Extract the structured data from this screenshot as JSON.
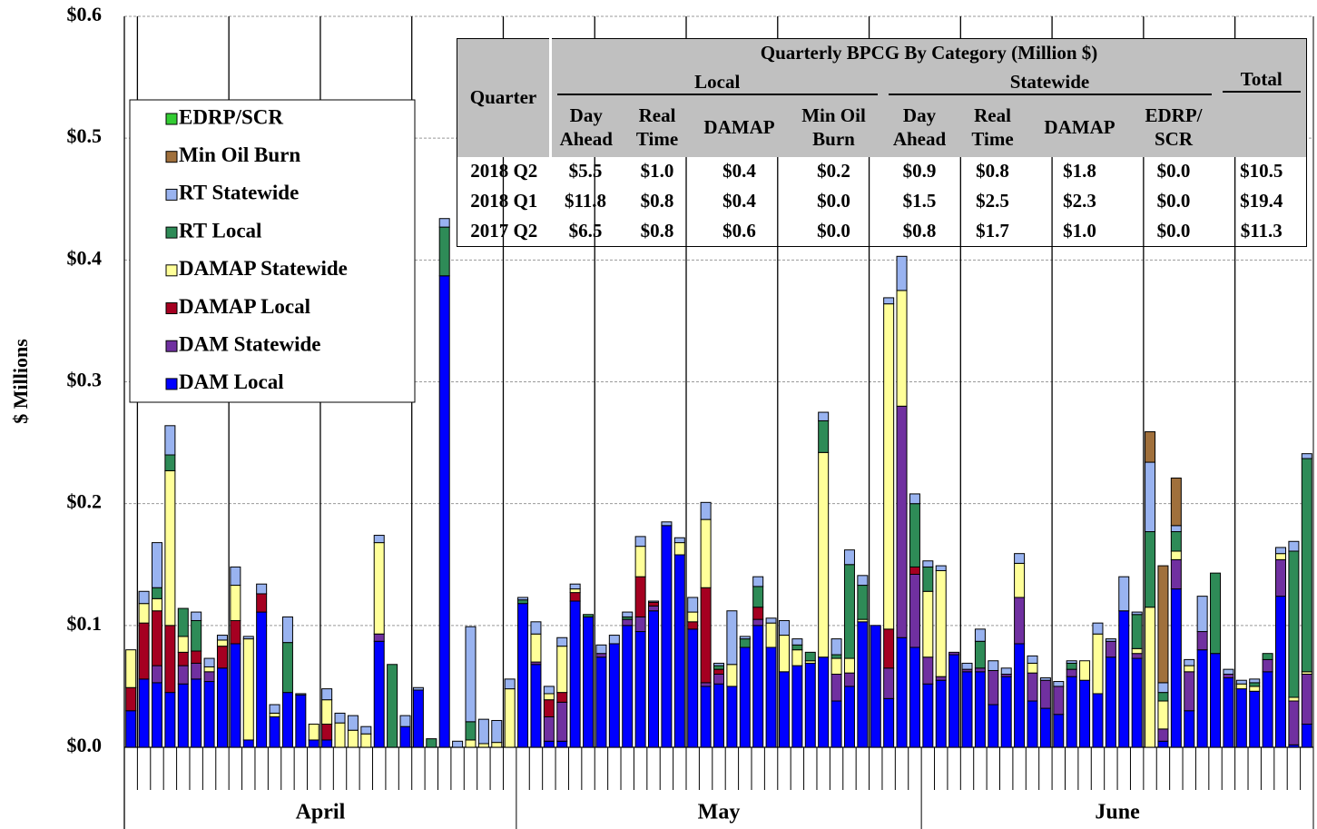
{
  "chart_data": {
    "type": "stacked_bar",
    "y_label": "$ Millions",
    "ylim": [
      0,
      0.6
    ],
    "yticks": [
      {
        "value": 0,
        "label": "$0.0"
      },
      {
        "value": 0.1,
        "label": "$0.1"
      },
      {
        "value": 0.2,
        "label": "$0.2"
      },
      {
        "value": 0.3,
        "label": "$0.3"
      },
      {
        "value": 0.4,
        "label": "$0.4"
      },
      {
        "value": 0.5,
        "label": "$0.5"
      },
      {
        "value": 0.6,
        "label": "$0.6"
      }
    ],
    "grid": true,
    "categories": [
      "April",
      "April",
      "April",
      "April",
      "April",
      "April",
      "April",
      "April",
      "April",
      "April",
      "April",
      "April",
      "April",
      "April",
      "April",
      "April",
      "April",
      "April",
      "April",
      "April",
      "April",
      "April",
      "April",
      "April",
      "April",
      "April",
      "April",
      "April",
      "April",
      "April",
      "May",
      "May",
      "May",
      "May",
      "May",
      "May",
      "May",
      "May",
      "May",
      "May",
      "May",
      "May",
      "May",
      "May",
      "May",
      "May",
      "May",
      "May",
      "May",
      "May",
      "May",
      "May",
      "May",
      "May",
      "May",
      "May",
      "May",
      "May",
      "May",
      "May",
      "May",
      "June",
      "June",
      "June",
      "June",
      "June",
      "June",
      "June",
      "June",
      "June",
      "June",
      "June",
      "June",
      "June",
      "June",
      "June",
      "June",
      "June",
      "June",
      "June",
      "June",
      "June",
      "June",
      "June",
      "June",
      "June",
      "June",
      "June",
      "June",
      "June",
      "June"
    ],
    "series": [
      {
        "name": "EDRP/SCR",
        "color": "#33cc33",
        "values": [
          0,
          0,
          0,
          0,
          0,
          0,
          0,
          0,
          0,
          0,
          0,
          0,
          0,
          0,
          0,
          0,
          0,
          0,
          0,
          0,
          0,
          0,
          0,
          0,
          0,
          0,
          0,
          0,
          0,
          0,
          0,
          0,
          0,
          0,
          0,
          0,
          0,
          0,
          0,
          0,
          0,
          0,
          0,
          0,
          0,
          0,
          0,
          0,
          0,
          0,
          0,
          0,
          0,
          0,
          0,
          0,
          0,
          0,
          0,
          0,
          0,
          0,
          0,
          0,
          0,
          0,
          0,
          0,
          0,
          0,
          0,
          0,
          0,
          0,
          0,
          0,
          0,
          0,
          0,
          0,
          0,
          0,
          0,
          0,
          0,
          0,
          0,
          0,
          0,
          0,
          0
        ]
      },
      {
        "name": "Min Oil Burn",
        "color": "#a0703c",
        "values": [
          0,
          0,
          0,
          0,
          0,
          0,
          0,
          0,
          0,
          0,
          0,
          0,
          0,
          0,
          0,
          0,
          0,
          0,
          0,
          0,
          0,
          0,
          0,
          0,
          0,
          0,
          0,
          0,
          0,
          0,
          0,
          0,
          0,
          0,
          0,
          0,
          0,
          0,
          0,
          0,
          0,
          0,
          0,
          0,
          0,
          0,
          0,
          0,
          0,
          0,
          0,
          0,
          0,
          0,
          0,
          0,
          0,
          0,
          0,
          0,
          0,
          0,
          0,
          0,
          0,
          0,
          0,
          0,
          0,
          0,
          0,
          0,
          0,
          0,
          0,
          0,
          0,
          0,
          0.025,
          0.096,
          0.039,
          0,
          0,
          0,
          0,
          0,
          0,
          0,
          0,
          0,
          0
        ]
      },
      {
        "name": "RT Statewide",
        "color": "#99b3f0",
        "values": [
          0,
          0.01,
          0.037,
          0.024,
          0,
          0.007,
          0.007,
          0.004,
          0.015,
          0.002,
          0.008,
          0.007,
          0.021,
          0.001,
          0,
          0.009,
          0.008,
          0.012,
          0.006,
          0.006,
          0,
          0.009,
          0.002,
          0,
          0.007,
          0.005,
          0.078,
          0.02,
          0.018,
          0.008,
          0.002,
          0.01,
          0.006,
          0.007,
          0.004,
          0,
          0.007,
          0.007,
          0.004,
          0.008,
          0.001,
          0.003,
          0.004,
          0.012,
          0.014,
          0.002,
          0.044,
          0.002,
          0.008,
          0.004,
          0.012,
          0.005,
          0,
          0.007,
          0.013,
          0.012,
          0.008,
          0,
          0.005,
          0.028,
          0.008,
          0.005,
          0.004,
          0,
          0.005,
          0.01,
          0.008,
          0.005,
          0.008,
          0.006,
          0.002,
          0.004,
          0.002,
          0,
          0.009,
          0.002,
          0.028,
          0.002,
          0.057,
          0.008,
          0.005,
          0.005,
          0.029,
          0,
          0.004,
          0.003,
          0.003,
          0,
          0.005,
          0.008,
          0.004
        ]
      },
      {
        "name": "RT Local",
        "color": "#2e8b57",
        "values": [
          0,
          0,
          0.009,
          0.013,
          0.023,
          0.025,
          0,
          0,
          0,
          0,
          0,
          0,
          0.041,
          0,
          0,
          0,
          0,
          0,
          0,
          0,
          0.068,
          0,
          0,
          0.007,
          0.04,
          0,
          0.015,
          0,
          0,
          0,
          0.003,
          0,
          0,
          0,
          0,
          0.002,
          0,
          0,
          0.002,
          0,
          0,
          0,
          0,
          0,
          0,
          0.003,
          0,
          0.007,
          0.017,
          0,
          0,
          0.004,
          0.007,
          0.026,
          0.003,
          0.077,
          0.028,
          0,
          0,
          0,
          0.052,
          0.02,
          0,
          0,
          0,
          0.022,
          0,
          0,
          0,
          0,
          0,
          0,
          0.005,
          0,
          0,
          0,
          0,
          0.028,
          0.062,
          0.007,
          0.016,
          0,
          0,
          0.066,
          0,
          0,
          0.003,
          0.005,
          0,
          0.12,
          0.175
        ]
      },
      {
        "name": "DAMAP Statewide",
        "color": "#ffff99",
        "values": [
          0.031,
          0.016,
          0.01,
          0.127,
          0.013,
          0,
          0.004,
          0.005,
          0.029,
          0.083,
          0,
          0.003,
          0,
          0,
          0.013,
          0.02,
          0.02,
          0.014,
          0.011,
          0.075,
          0,
          0,
          0,
          0,
          0,
          0,
          0.006,
          0.003,
          0.004,
          0.048,
          0,
          0.023,
          0.005,
          0.038,
          0.003,
          0,
          0,
          0,
          0,
          0.025,
          0,
          0,
          0.01,
          0.008,
          0.056,
          0,
          0.018,
          0,
          0,
          0.02,
          0.03,
          0.013,
          0.002,
          0.168,
          0.013,
          0.012,
          0.002,
          0,
          0.267,
          0.095,
          0,
          0.054,
          0.087,
          0,
          0,
          0,
          0,
          0,
          0.028,
          0.008,
          0,
          0,
          0,
          0.016,
          0.049,
          0,
          0,
          0.004,
          0.115,
          0.023,
          0.007,
          0.005,
          0,
          0,
          0,
          0.004,
          0.004,
          0,
          0.005,
          0.003,
          0.002
        ]
      },
      {
        "name": "DAMAP Local",
        "color": "#a50021",
        "values": [
          0.019,
          0.046,
          0.045,
          0.055,
          0.011,
          0.01,
          0,
          0.018,
          0.019,
          0,
          0.015,
          0,
          0,
          0,
          0,
          0.013,
          0,
          0,
          0,
          0,
          0,
          0,
          0,
          0,
          0,
          0,
          0,
          0,
          0,
          0,
          0,
          0,
          0.014,
          0.008,
          0.007,
          0,
          0,
          0,
          0,
          0.033,
          0.003,
          0,
          0,
          0.006,
          0.078,
          0.004,
          0,
          0,
          0.01,
          0,
          0,
          0,
          0,
          0,
          0,
          0,
          0,
          0,
          0.032,
          0,
          0.006,
          0,
          0,
          0,
          0,
          0,
          0,
          0,
          0,
          0,
          0,
          0,
          0,
          0,
          0,
          0,
          0,
          0,
          0,
          0,
          0,
          0,
          0,
          0,
          0,
          0,
          0,
          0,
          0,
          0,
          0
        ]
      },
      {
        "name": "DAM Statewide",
        "color": "#7030a0",
        "values": [
          0,
          0,
          0.014,
          0,
          0.015,
          0.013,
          0.008,
          0,
          0,
          0,
          0,
          0,
          0,
          0,
          0,
          0,
          0,
          0,
          0,
          0.006,
          0,
          0,
          0,
          0,
          0,
          0,
          0,
          0,
          0,
          0,
          0,
          0.002,
          0.02,
          0.032,
          0,
          0,
          0.003,
          0,
          0.005,
          0.012,
          0.004,
          0,
          0,
          0,
          0.003,
          0.008,
          0,
          0,
          0.005,
          0,
          0,
          0,
          0,
          0,
          0.022,
          0.011,
          0,
          0,
          0.025,
          0.19,
          0.06,
          0.022,
          0.003,
          0.002,
          0.002,
          0.003,
          0.028,
          0.002,
          0.038,
          0.023,
          0.023,
          0.023,
          0.006,
          0,
          0,
          0.013,
          0,
          0.004,
          0,
          0.01,
          0.024,
          0.032,
          0.015,
          0,
          0.003,
          0,
          0,
          0.01,
          0.03,
          0.036,
          0.041
        ]
      },
      {
        "name": "DAM Local",
        "color": "#0000ff",
        "values": [
          0.03,
          0.056,
          0.053,
          0.045,
          0.052,
          0.056,
          0.054,
          0.065,
          0.085,
          0.006,
          0.111,
          0.025,
          0.045,
          0.043,
          0.006,
          0.006,
          0,
          0,
          0,
          0.087,
          0,
          0.017,
          0.047,
          0,
          0.387,
          0,
          0,
          0,
          0,
          0,
          0.118,
          0.068,
          0.005,
          0.005,
          0.12,
          0.107,
          0.074,
          0.085,
          0.1,
          0.095,
          0.112,
          0.182,
          0.158,
          0.097,
          0.05,
          0.052,
          0.05,
          0.082,
          0.1,
          0.082,
          0.062,
          0.067,
          0.069,
          0.074,
          0.038,
          0.05,
          0.103,
          0.1,
          0.04,
          0.09,
          0.082,
          0.052,
          0.055,
          0.076,
          0.062,
          0.062,
          0.035,
          0.058,
          0.085,
          0.038,
          0.032,
          0.027,
          0.058,
          0.055,
          0.044,
          0.074,
          0.112,
          0.073,
          0,
          0.005,
          0.13,
          0.03,
          0.08,
          0.077,
          0.057,
          0.048,
          0.046,
          0.062,
          0.124,
          0.002,
          0.019
        ]
      }
    ]
  },
  "table": {
    "title": "Quarterly BPCG By Category (Million $)",
    "corner": "Quarter",
    "groups": [
      "Local",
      "Statewide",
      "Total"
    ],
    "columns": [
      "Day\nAhead",
      "Real\nTime",
      "DAMAP",
      "Min Oil\nBurn",
      "Day\nAhead",
      "Real\nTime",
      "DAMAP",
      "EDRP/\nSCR"
    ],
    "rows": [
      [
        "2018 Q2",
        "$5.5",
        "$1.0",
        "$0.4",
        "$0.2",
        "$0.9",
        "$0.8",
        "$1.8",
        "$0.0",
        "$10.5"
      ],
      [
        "2018 Q1",
        "$11.8",
        "$0.8",
        "$0.4",
        "$0.0",
        "$1.5",
        "$2.5",
        "$2.3",
        "$0.0",
        "$19.4"
      ],
      [
        "2017 Q2",
        "$6.5",
        "$0.8",
        "$0.6",
        "$0.0",
        "$0.8",
        "$1.7",
        "$1.0",
        "$0.0",
        "$11.3"
      ]
    ]
  }
}
